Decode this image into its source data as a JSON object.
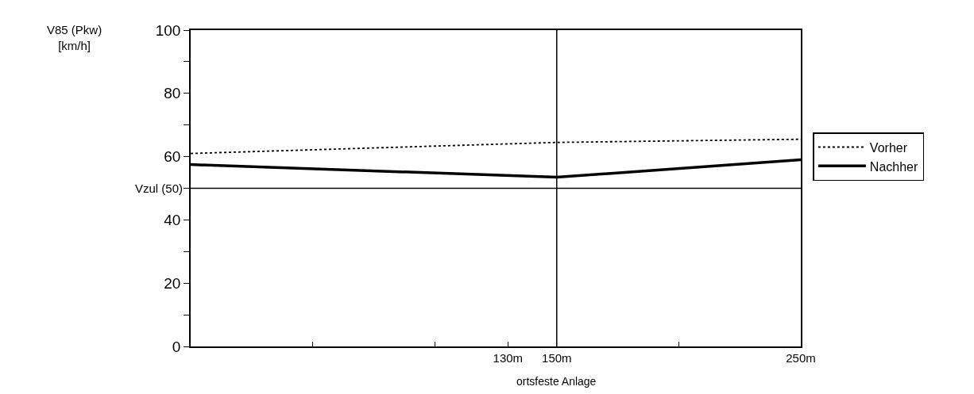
{
  "chart_data": {
    "type": "line",
    "ylabel": "V85 (Pkw)\n[km/h]",
    "xlim": [
      0,
      250
    ],
    "xticks": [
      {
        "value": 50,
        "label": null
      },
      {
        "value": 100,
        "label": null
      },
      {
        "value": 130,
        "label": "130m"
      },
      {
        "value": 150,
        "label": "150m"
      },
      {
        "value": 200,
        "label": null
      },
      {
        "value": 250,
        "label": "250m"
      }
    ],
    "ylim": [
      0,
      100
    ],
    "yticks": [
      0,
      {
        "value": 10,
        "label": null
      },
      20,
      {
        "value": 30,
        "label": null
      },
      40,
      {
        "value": 50,
        "label": null
      },
      60,
      {
        "value": 70,
        "label": null
      },
      80,
      {
        "value": 90,
        "label": null
      },
      100
    ],
    "x": [
      0,
      150,
      250
    ],
    "series": [
      {
        "name": "Vorher",
        "color": "#000000",
        "line_style": "dotted",
        "values": [
          61,
          64.5,
          65.5
        ]
      },
      {
        "name": "Nachher",
        "color": "#000000",
        "line_style": "solid",
        "values": [
          57.5,
          53.5,
          59
        ]
      }
    ],
    "ref_lines": [
      {
        "axis": "y",
        "value": 50,
        "label": "Vzul (50)",
        "color": "#000000"
      },
      {
        "axis": "x",
        "value": 150,
        "color": "#000000"
      }
    ],
    "annotations": [
      "ortsfeste Anlage"
    ],
    "legend": "right",
    "marker": "none"
  }
}
